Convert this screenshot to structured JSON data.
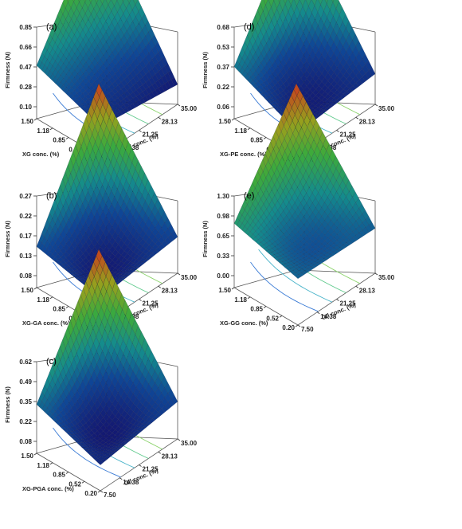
{
  "figure": {
    "charts": [
      {
        "id": "a",
        "panel_label": "(a)",
        "z_label": "Firmness (N)",
        "z_ticks": [
          "0.85",
          "0.66",
          "0.47",
          "0.28",
          "0.10"
        ],
        "zlim": [
          0.1,
          0.85
        ],
        "x_label": "XG conc. (%)",
        "x_ticks": [
          "1.50",
          "1.18",
          "0.85",
          "0.52",
          "0.20"
        ],
        "y_label": "Oil conc. (%)",
        "y_ticks": [
          "7.50",
          "14.38",
          "21.25",
          "28.13",
          "35.00"
        ]
      },
      {
        "id": "b",
        "panel_label": "(b)",
        "z_label": "Firmness (N)",
        "z_ticks": [
          "0.27",
          "0.22",
          "0.17",
          "0.13",
          "0.08"
        ],
        "zlim": [
          0.08,
          0.27
        ],
        "x_label": "XG-GA conc. (%)",
        "x_ticks": [
          "1.50",
          "1.18",
          "0.85",
          "0.52",
          "0.20"
        ],
        "y_label": "Oil conc. (%)",
        "y_ticks": [
          "7.50",
          "14.38",
          "21.25",
          "28.13",
          "35.00"
        ]
      },
      {
        "id": "c",
        "panel_label": "(c)",
        "z_label": "Firmness (N)",
        "z_ticks": [
          "0.62",
          "0.49",
          "0.35",
          "0.22",
          "0.08"
        ],
        "zlim": [
          0.08,
          0.62
        ],
        "x_label": "XG-PGA conc. (%)",
        "x_ticks": [
          "1.50",
          "1.18",
          "0.85",
          "0.52",
          "0.20"
        ],
        "y_label": "Oil conc. (%)",
        "y_ticks": [
          "7.50",
          "14.38",
          "21.25",
          "28.13",
          "35.00"
        ]
      },
      {
        "id": "d",
        "panel_label": "(d)",
        "z_label": "Firmness (N)",
        "z_ticks": [
          "0.68",
          "0.53",
          "0.37",
          "0.22",
          "0.06"
        ],
        "zlim": [
          0.06,
          0.68
        ],
        "x_label": "XG-PE conc. (%)",
        "x_ticks": [
          "1.50",
          "1.18",
          "0.85",
          "0.52",
          "0.20"
        ],
        "y_label": "Oil conc. (%)",
        "y_ticks": [
          "7.50",
          "14.38",
          "21.25",
          "28.13",
          "35.00"
        ]
      },
      {
        "id": "e",
        "panel_label": "(e)",
        "z_label": "Firmness (N)",
        "z_ticks": [
          "1.30",
          "0.98",
          "0.65",
          "0.33",
          "0.00"
        ],
        "zlim": [
          0.0,
          1.3
        ],
        "x_label": "XG-GG conc. (%)",
        "x_ticks": [
          "1.50",
          "1.18",
          "0.85",
          "0.52",
          "0.20"
        ],
        "y_label": "Oil conc. (%)",
        "y_ticks": [
          "7.50",
          "14.38",
          "21.25",
          "28.13",
          "35.00"
        ]
      }
    ]
  },
  "chart_data": [
    {
      "type": "surface3d",
      "panel": "(a)",
      "x_name": "XG conc. (%)",
      "y_name": "Oil conc. (%)",
      "z_name": "Firmness (N)",
      "xlim": [
        0.2,
        1.5
      ],
      "ylim": [
        7.5,
        35.0
      ],
      "zlim": [
        0.1,
        0.85
      ],
      "corners": {
        "x0.20_y7.50": 0.2,
        "x1.50_y7.50": 0.4,
        "x0.20_y35.00": 0.12,
        "x1.50_y35.00": 0.85
      },
      "center": 0.33,
      "colormap": "blue-green-red",
      "contours_on_base": true
    },
    {
      "type": "surface3d",
      "panel": "(b)",
      "x_name": "XG-GA conc. (%)",
      "y_name": "Oil conc. (%)",
      "z_name": "Firmness (N)",
      "xlim": [
        0.2,
        1.5
      ],
      "ylim": [
        7.5,
        35.0
      ],
      "zlim": [
        0.08,
        0.27
      ],
      "corners": {
        "x0.20_y7.50": 0.1,
        "x1.50_y7.50": 0.13,
        "x0.20_y35.00": 0.12,
        "x1.50_y35.00": 0.27
      },
      "center": 0.1,
      "colormap": "blue-green-red",
      "contours_on_base": true
    },
    {
      "type": "surface3d",
      "panel": "(c)",
      "x_name": "XG-PGA conc. (%)",
      "y_name": "Oil conc. (%)",
      "z_name": "Firmness (N)",
      "xlim": [
        0.2,
        1.5
      ],
      "ylim": [
        7.5,
        35.0
      ],
      "zlim": [
        0.08,
        0.62
      ],
      "corners": {
        "x0.20_y7.50": 0.13,
        "x1.50_y7.50": 0.27,
        "x0.20_y35.00": 0.2,
        "x1.50_y35.00": 0.62
      },
      "center": 0.13,
      "colormap": "blue-green-red",
      "contours_on_base": true
    },
    {
      "type": "surface3d",
      "panel": "(d)",
      "x_name": "XG-PE conc. (%)",
      "y_name": "Oil conc. (%)",
      "z_name": "Firmness (N)",
      "xlim": [
        0.2,
        1.5
      ],
      "ylim": [
        7.5,
        35.0
      ],
      "zlim": [
        0.06,
        0.68
      ],
      "corners": {
        "x0.20_y7.50": 0.1,
        "x1.50_y7.50": 0.3,
        "x0.20_y35.00": 0.15,
        "x1.50_y35.00": 0.68
      },
      "center": 0.15,
      "colormap": "blue-green-red",
      "contours_on_base": true
    },
    {
      "type": "surface3d",
      "panel": "(e)",
      "x_name": "XG-GG conc. (%)",
      "y_name": "Oil conc. (%)",
      "z_name": "Firmness (N)",
      "xlim": [
        0.2,
        1.5
      ],
      "ylim": [
        7.5,
        35.0
      ],
      "zlim": [
        0.0,
        1.3
      ],
      "corners": {
        "x0.20_y7.50": 0.42,
        "x1.50_y7.50": 0.68,
        "x0.20_y35.00": 0.4,
        "x1.50_y35.00": 1.3
      },
      "center": 0.45,
      "colormap": "blue-green-red",
      "contours_on_base": true
    }
  ]
}
